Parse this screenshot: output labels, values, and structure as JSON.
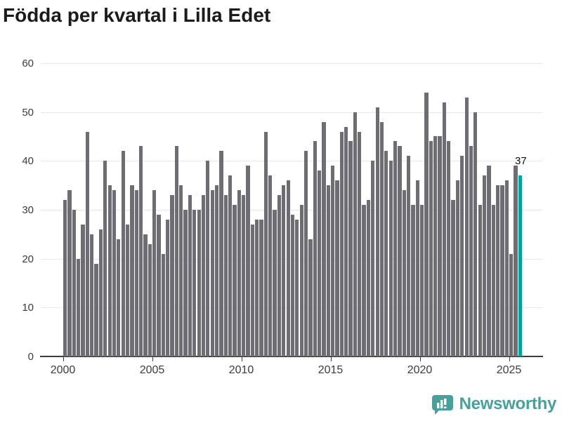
{
  "title": "Födda per kvartal i Lilla Edet",
  "annotation_label": "37",
  "footer": {
    "brand": "Newsworthy",
    "logo_icon": "bar-chart-speech-bubble-icon",
    "brand_color": "#46a09b"
  },
  "chart_data": {
    "type": "bar",
    "title": "Födda per kvartal i Lilla Edet",
    "xlabel": "",
    "ylabel": "",
    "x_start": "2000-Q1",
    "x_end": "2025-Q3",
    "x_tick_labels": [
      "2000",
      "2005",
      "2010",
      "2015",
      "2020",
      "2025"
    ],
    "y_ticks": [
      0,
      10,
      20,
      30,
      40,
      50,
      60
    ],
    "ylim": [
      0,
      60
    ],
    "grid": true,
    "legend_position": "none",
    "bar_color": "#6d6d73",
    "highlight_color": "#00a39e",
    "highlight_last_bar": true,
    "annotation": {
      "text": "37",
      "target": "last-bar"
    },
    "values": [
      32,
      34,
      30,
      20,
      27,
      46,
      25,
      19,
      26,
      40,
      35,
      34,
      24,
      42,
      27,
      35,
      34,
      43,
      25,
      23,
      34,
      29,
      21,
      28,
      33,
      43,
      35,
      30,
      33,
      30,
      30,
      33,
      40,
      34,
      35,
      42,
      33,
      37,
      31,
      34,
      33,
      39,
      27,
      28,
      28,
      46,
      37,
      30,
      33,
      35,
      36,
      29,
      28,
      31,
      42,
      24,
      44,
      38,
      48,
      35,
      39,
      36,
      46,
      47,
      44,
      50,
      46,
      31,
      32,
      40,
      51,
      48,
      42,
      40,
      44,
      43,
      34,
      41,
      31,
      36,
      31,
      54,
      44,
      45,
      45,
      52,
      44,
      32,
      36,
      41,
      53,
      43,
      50,
      31,
      37,
      39,
      31,
      35,
      35,
      36,
      21,
      39,
      37
    ]
  }
}
